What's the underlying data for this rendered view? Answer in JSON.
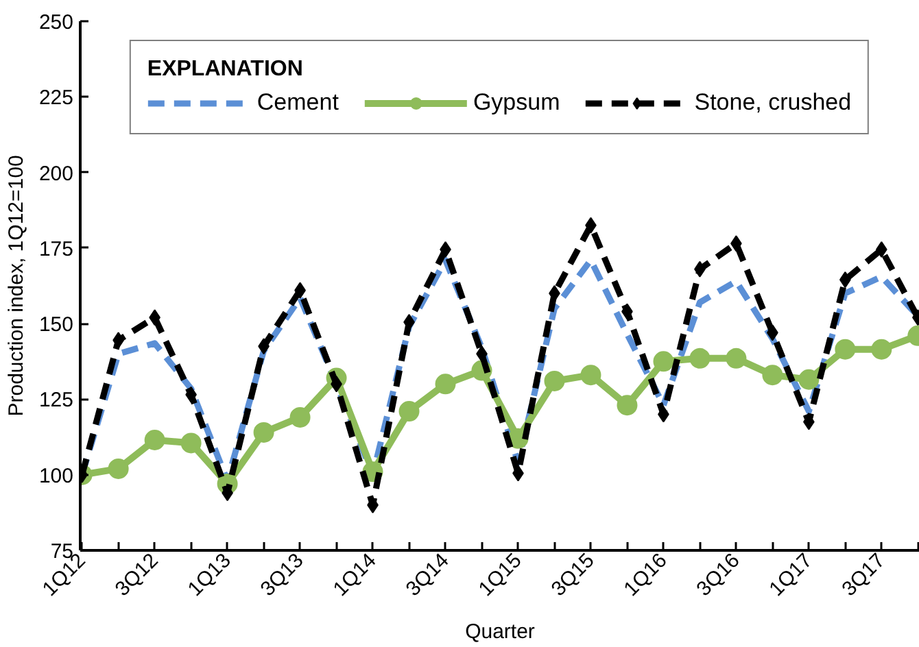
{
  "chart_data": {
    "type": "line",
    "xlabel": "Quarter",
    "ylabel": "Production index, 1Q12=100",
    "legend_title": "EXPLANATION",
    "categories": [
      "1Q12",
      null,
      "3Q12",
      null,
      "1Q13",
      null,
      "3Q13",
      null,
      "1Q14",
      null,
      "3Q14",
      null,
      "1Q15",
      null,
      "3Q15",
      null,
      "1Q16",
      null,
      "3Q16",
      null,
      "1Q17",
      null,
      "3Q17",
      null
    ],
    "ylim": [
      75,
      250
    ],
    "yticks": [
      75,
      100,
      125,
      150,
      175,
      200,
      225,
      250
    ],
    "grid": false,
    "legend": "top",
    "series": [
      {
        "name": "Cement",
        "color": "#5b8fd6",
        "line_style": "dashed",
        "marker": "none",
        "values": [
          100,
          140,
          143.5,
          128.5,
          98,
          141,
          158.5,
          130,
          100,
          149,
          171,
          142,
          104,
          155,
          171,
          146.5,
          123,
          157,
          164,
          145,
          121,
          160,
          165.5,
          152.5
        ]
      },
      {
        "name": "Gypsum",
        "color": "#8fbc5a",
        "line_style": "solid",
        "marker": "circle",
        "values": [
          100,
          102,
          111.5,
          110.5,
          97,
          114,
          119,
          132,
          101,
          121,
          130,
          134.5,
          112,
          131,
          133,
          123,
          137.5,
          138.5,
          138.5,
          133,
          131.5,
          141.5,
          141.5,
          146
        ]
      },
      {
        "name": "Stone, crushed",
        "color": "#000000",
        "line_style": "dashed",
        "marker": "diamond",
        "values": [
          100,
          144.5,
          152,
          126.5,
          94,
          142.5,
          161,
          130,
          90,
          150.5,
          174.5,
          140,
          100.5,
          160,
          182.5,
          154,
          120,
          168,
          176.5,
          147,
          117.5,
          164.5,
          174.5,
          152
        ]
      }
    ]
  }
}
